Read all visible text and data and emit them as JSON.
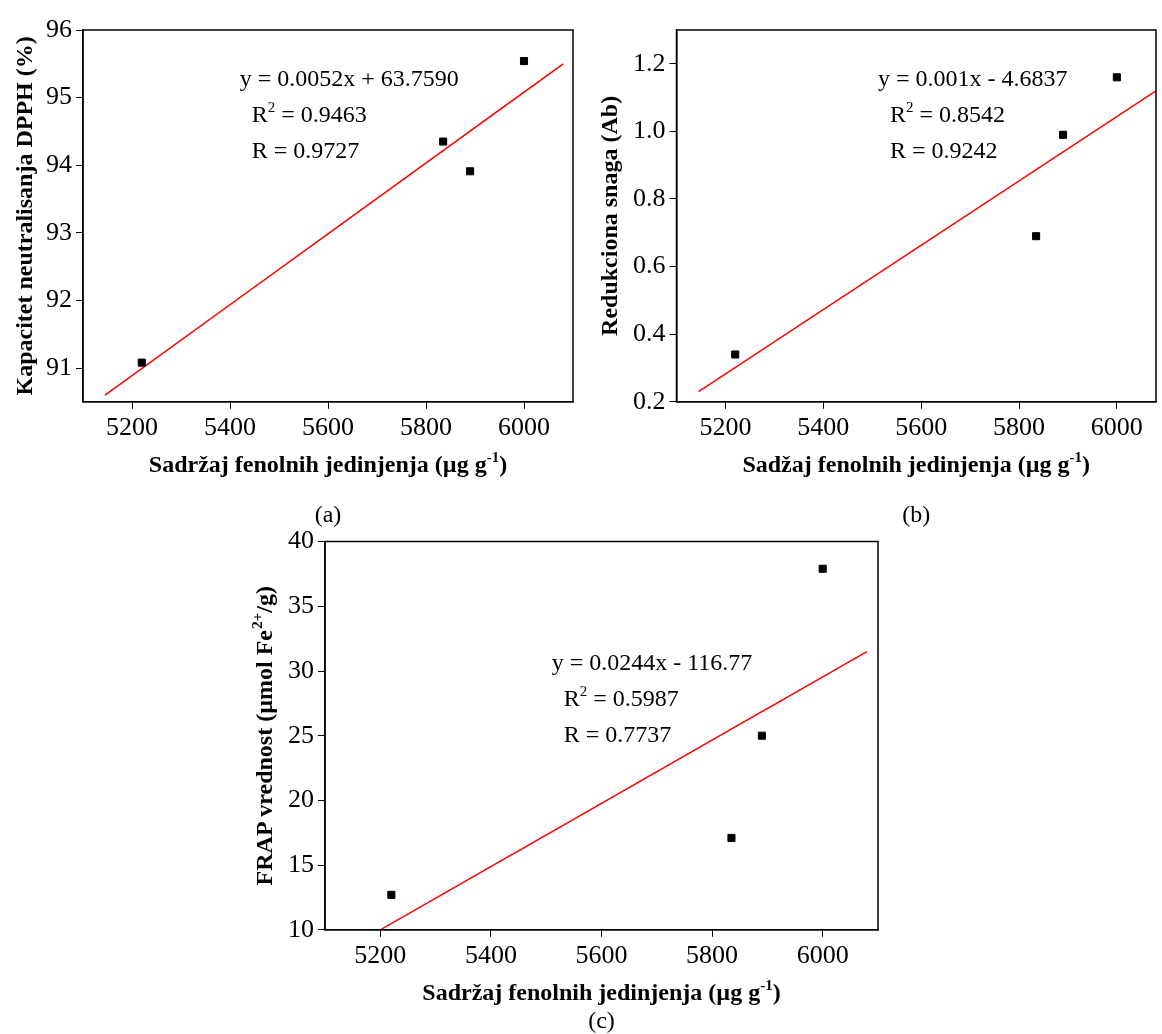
{
  "chart_data": [
    {
      "type": "scatter",
      "xlabel": "Sadržaj fenolnih jedinjenja (µg g$^{-1}$)",
      "ylabel": "Kapacitet neutralisanja DPPH (%)",
      "xlim": [
        5100,
        6100
      ],
      "xticks": [
        5200,
        5400,
        5600,
        5800,
        6000
      ],
      "ylim": [
        90.5,
        96
      ],
      "yticks": [
        91,
        92,
        93,
        94,
        95,
        96
      ],
      "annotations": [
        "y = 0.0052x + 63.7590",
        "R$^{2}$ = 0.9463",
        "R = 0.9727",
        "(a)"
      ],
      "series": [
        {
          "marker": "square",
          "color": "#000000",
          "x": [
            5220,
            5835,
            5890,
            6000
          ],
          "values": [
            91.08,
            94.35,
            93.91,
            95.54
          ]
        },
        {
          "type": "line",
          "marker": "none",
          "color": "#ff0000",
          "x": [
            5145,
            6080
          ],
          "values": [
            90.6,
            95.5
          ]
        }
      ]
    },
    {
      "type": "scatter",
      "xlabel": "Sadžaj fenolnih jedinjenja (µg g$^{-1}$)",
      "ylabel": "Redukciona snaga (Ab)",
      "xlim": [
        5100,
        6080
      ],
      "xticks": [
        5200,
        5400,
        5600,
        5800,
        6000
      ],
      "ylim": [
        0.2,
        1.3
      ],
      "yticks": [
        {
          "value": 0.2,
          "label": "0.2"
        },
        {
          "value": 0.4,
          "label": "0.4"
        },
        {
          "value": 0.6,
          "label": "0.6"
        },
        {
          "value": 0.8,
          "label": "0.8"
        },
        {
          "value": 1.0,
          "label": "1.0"
        },
        {
          "value": 1.2,
          "label": "1.2"
        }
      ],
      "annotations": [
        "y = 0.001x - 4.6837",
        "R$^{2}$ = 0.8542",
        "R = 0.9242",
        "(b)"
      ],
      "series": [
        {
          "marker": "square",
          "color": "#000000",
          "x": [
            5220,
            5835,
            5890,
            6000
          ],
          "values": [
            0.34,
            0.69,
            0.99,
            1.16
          ]
        },
        {
          "type": "line",
          "marker": "none",
          "color": "#ff0000",
          "x": [
            5145,
            6080
          ],
          "values": [
            0.23,
            1.12
          ]
        }
      ]
    },
    {
      "type": "scatter",
      "xlabel": "Sadržaj fenolnih jedinjenja (µg g$^{-1}$)",
      "ylabel": "FRAP vrednost (µmol Fe$^{2+}$/g)",
      "xlim": [
        5100,
        6100
      ],
      "xticks": [
        5200,
        5400,
        5600,
        5800,
        6000
      ],
      "ylim": [
        10,
        40
      ],
      "yticks": [
        10,
        15,
        20,
        25,
        30,
        35,
        40
      ],
      "annotations": [
        "y = 0.0244x - 116.77",
        "R$^{2}$ = 0.5987",
        "R = 0.7737",
        "(c)"
      ],
      "series": [
        {
          "marker": "square",
          "color": "#000000",
          "x": [
            5220,
            5835,
            5890,
            6000
          ],
          "values": [
            12.7,
            17.1,
            25.0,
            37.9
          ]
        },
        {
          "type": "line",
          "marker": "none",
          "color": "#ff0000",
          "x": [
            5200,
            6080
          ],
          "values": [
            10,
            31.5
          ]
        }
      ]
    }
  ]
}
